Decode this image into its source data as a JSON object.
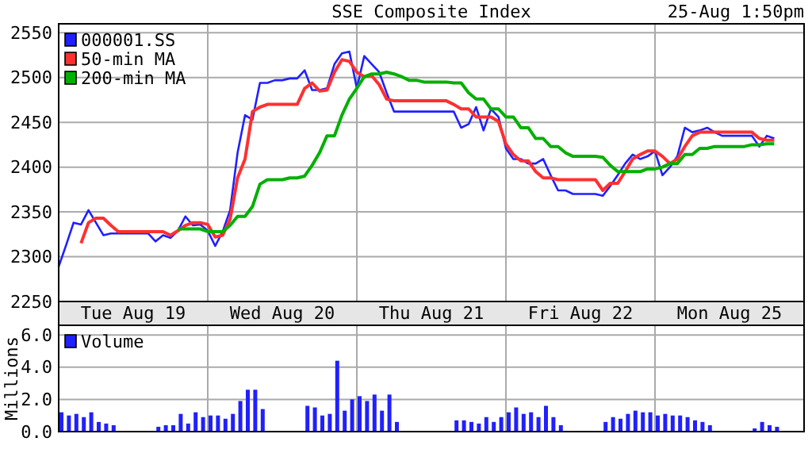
{
  "chart_data": [
    {
      "type": "line",
      "title": "SSE Composite Index",
      "annotations": [
        "25-Aug 1:50pm"
      ],
      "legend": "top left",
      "grid": true,
      "ylim": [
        2250,
        2560
      ],
      "yticks": [
        2250,
        2300,
        2350,
        2400,
        2450,
        2500,
        2550
      ],
      "categories": [
        null,
        null,
        null,
        null,
        null,
        null,
        null,
        null,
        null,
        null,
        "Tue Aug 19",
        null,
        null,
        null,
        null,
        null,
        null,
        null,
        null,
        null,
        null,
        null,
        null,
        null,
        null,
        null,
        null,
        null,
        null,
        null,
        "Wed Aug 20",
        null,
        null,
        null,
        null,
        null,
        null,
        null,
        null,
        null,
        null,
        null,
        null,
        null,
        null,
        null,
        null,
        null,
        null,
        null,
        "Thu Aug 21",
        null,
        null,
        null,
        null,
        null,
        null,
        null,
        null,
        null,
        null,
        null,
        null,
        null,
        null,
        null,
        null,
        null,
        null,
        null,
        "Fri Aug 22",
        null,
        null,
        null,
        null,
        null,
        null,
        null,
        null,
        null,
        null,
        null,
        null,
        null,
        null,
        null,
        null,
        null,
        null,
        null,
        "Mon Aug 25",
        null,
        null,
        null,
        null,
        null,
        null,
        null,
        null,
        null
      ],
      "series": [
        {
          "name": "000001.SS",
          "color": "#2020ff",
          "values": [
            2289,
            2313,
            2338,
            2336,
            2352,
            2338,
            2324,
            2326,
            2326,
            2326,
            2326,
            2326,
            2326,
            2317,
            2324,
            2321,
            2329,
            2345,
            2335,
            2336,
            2329,
            2312,
            2328,
            2352,
            2416,
            2458,
            2453,
            2494,
            2494,
            2497,
            2497,
            2499,
            2499,
            2508,
            2486,
            2486,
            2488,
            2515,
            2527,
            2529,
            2488,
            2524,
            2515,
            2506,
            2483,
            2462,
            2462,
            2462,
            2462,
            2462,
            2462,
            2462,
            2462,
            2462,
            2444,
            2448,
            2467,
            2441,
            2465,
            2456,
            2421,
            2409,
            2409,
            2404,
            2404,
            2409,
            2391,
            2374,
            2374,
            2370,
            2370,
            2370,
            2370,
            2368,
            2379,
            2391,
            2404,
            2414,
            2409,
            2412,
            2418,
            2391,
            2400,
            2412,
            2444,
            2439,
            2441,
            2444,
            2439,
            2435,
            2435,
            2435,
            2435,
            2435,
            2423,
            2435,
            2432,
            null,
            null,
            null
          ]
        },
        {
          "name": "50-min MA",
          "color": "#ff3030",
          "values": [
            null,
            null,
            null,
            2315,
            2338,
            2343,
            2343,
            2335,
            2328,
            2328,
            2328,
            2328,
            2328,
            2328,
            2328,
            2324,
            2329,
            2335,
            2338,
            2338,
            2336,
            2322,
            2324,
            2342,
            2388,
            2409,
            2462,
            2467,
            2470,
            2470,
            2470,
            2470,
            2470,
            2488,
            2494,
            2485,
            2486,
            2506,
            2520,
            2518,
            2506,
            2501,
            2502,
            2492,
            2476,
            2474,
            2474,
            2474,
            2474,
            2474,
            2474,
            2474,
            2474,
            2470,
            2465,
            2465,
            2456,
            2456,
            2456,
            2451,
            2426,
            2414,
            2407,
            2407,
            2395,
            2388,
            2388,
            2386,
            2386,
            2386,
            2386,
            2386,
            2386,
            2374,
            2382,
            2382,
            2395,
            2409,
            2414,
            2418,
            2418,
            2412,
            2404,
            2409,
            2423,
            2435,
            2439,
            2439,
            2439,
            2439,
            2439,
            2439,
            2439,
            2439,
            2432,
            2430,
            2430,
            null,
            null,
            null
          ]
        },
        {
          "name": "200-min MA",
          "color": "#00b000",
          "values": [
            null,
            null,
            null,
            null,
            null,
            null,
            null,
            null,
            null,
            null,
            null,
            null,
            null,
            null,
            null,
            null,
            2331,
            2331,
            2331,
            2331,
            2328,
            2328,
            2328,
            2335,
            2345,
            2345,
            2356,
            2381,
            2386,
            2386,
            2386,
            2388,
            2388,
            2390,
            2402,
            2416,
            2435,
            2435,
            2458,
            2476,
            2488,
            2501,
            2504,
            2504,
            2506,
            2504,
            2501,
            2497,
            2497,
            2495,
            2495,
            2495,
            2495,
            2494,
            2494,
            2483,
            2476,
            2476,
            2465,
            2465,
            2456,
            2456,
            2444,
            2444,
            2432,
            2432,
            2423,
            2423,
            2416,
            2412,
            2412,
            2412,
            2412,
            2411,
            2402,
            2395,
            2395,
            2395,
            2395,
            2398,
            2398,
            2400,
            2404,
            2404,
            2414,
            2414,
            2421,
            2421,
            2423,
            2423,
            2423,
            2423,
            2423,
            2425,
            2425,
            2426,
            2426,
            null,
            null,
            null
          ]
        }
      ]
    },
    {
      "type": "bar",
      "ylabel": "Millions",
      "legend": "top left",
      "grid": true,
      "tick_labels": "y",
      "ylim": [
        0,
        6.6
      ],
      "yticks": [
        {
          "value": 0,
          "label": "0.0"
        },
        {
          "value": 2,
          "label": "2.0"
        },
        {
          "value": 4,
          "label": "4.0"
        },
        {
          "value": 6,
          "label": "6.0"
        }
      ],
      "categories": [
        null,
        null,
        null,
        null,
        null,
        null,
        null,
        null,
        null,
        null,
        null,
        null,
        null,
        null,
        null,
        null,
        null,
        null,
        null,
        null,
        null,
        null,
        null,
        null,
        null,
        null,
        null,
        null,
        null,
        null,
        null,
        null,
        null,
        null,
        null,
        null,
        null,
        null,
        null,
        null,
        null,
        null,
        null,
        null,
        null,
        null,
        null,
        null,
        null,
        null,
        null,
        null,
        null,
        null,
        null,
        null,
        null,
        null,
        null,
        null,
        null,
        null,
        null,
        null,
        null,
        null,
        null,
        null,
        null,
        null,
        null,
        null,
        null,
        null,
        null,
        null,
        null,
        null,
        null,
        null,
        null,
        null,
        null,
        null,
        null,
        null,
        null,
        null,
        null,
        null,
        null,
        null,
        null,
        null,
        null,
        null,
        null,
        null,
        null,
        null
      ],
      "series": [
        {
          "name": "Volume",
          "color": "#2020ff",
          "values": [
            1.2,
            1.0,
            1.1,
            0.9,
            1.2,
            0.6,
            0.5,
            0.4,
            null,
            null,
            null,
            null,
            null,
            0.3,
            0.4,
            0.4,
            1.1,
            0.5,
            1.2,
            0.9,
            1.0,
            1.0,
            0.8,
            1.1,
            1.9,
            2.6,
            2.6,
            1.4,
            null,
            null,
            null,
            null,
            null,
            1.6,
            1.5,
            1.0,
            1.1,
            4.4,
            1.3,
            2.0,
            2.2,
            1.9,
            2.3,
            1.3,
            2.3,
            0.6,
            null,
            null,
            null,
            null,
            null,
            null,
            null,
            0.7,
            0.7,
            0.6,
            0.5,
            0.9,
            0.6,
            0.9,
            1.2,
            1.5,
            1.1,
            1.2,
            0.9,
            1.6,
            0.9,
            0.4,
            null,
            null,
            null,
            null,
            null,
            0.6,
            0.9,
            0.8,
            1.1,
            1.3,
            1.2,
            1.2,
            1.0,
            1.1,
            1.0,
            1.0,
            0.9,
            0.7,
            0.6,
            0.4,
            null,
            null,
            null,
            null,
            null,
            0.2,
            0.6,
            0.4,
            0.3,
            null,
            null,
            null
          ]
        }
      ]
    }
  ]
}
